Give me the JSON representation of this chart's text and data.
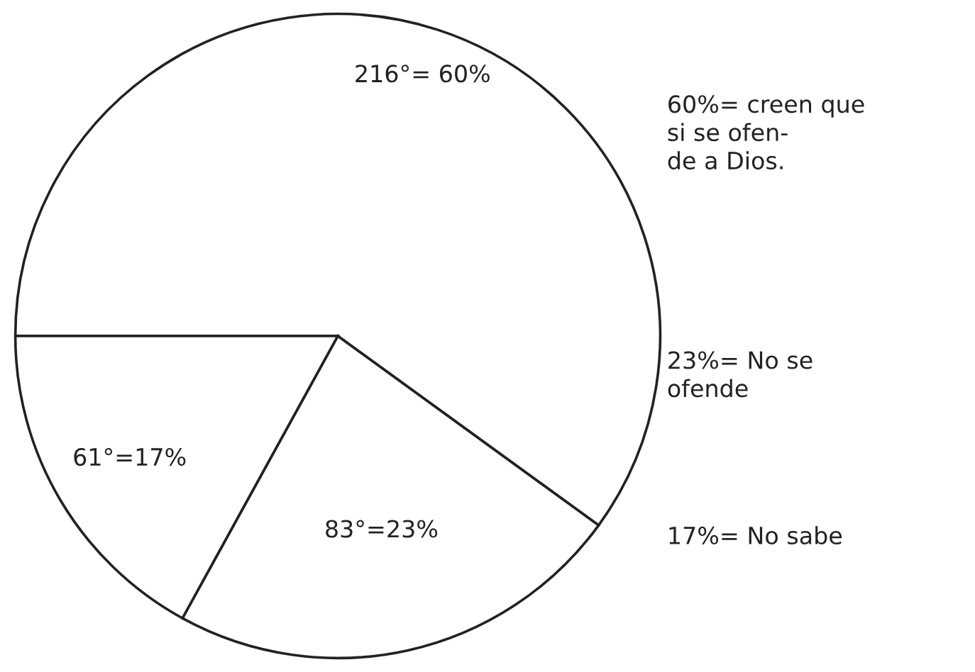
{
  "chart_data": {
    "type": "pie",
    "categories": [
      null,
      null,
      null
    ],
    "values": [
      60,
      23,
      17
    ],
    "colors": [
      "#ffffff",
      "#ffffff",
      "#ffffff"
    ],
    "value_labels": [
      "216°= 60%",
      "83°=23%",
      "61°=17%"
    ],
    "annotations": [
      "60%= creen que\nsi se ofen-\nde a Dios.",
      "23%= No se\nofende",
      "17%= No sabe"
    ]
  }
}
